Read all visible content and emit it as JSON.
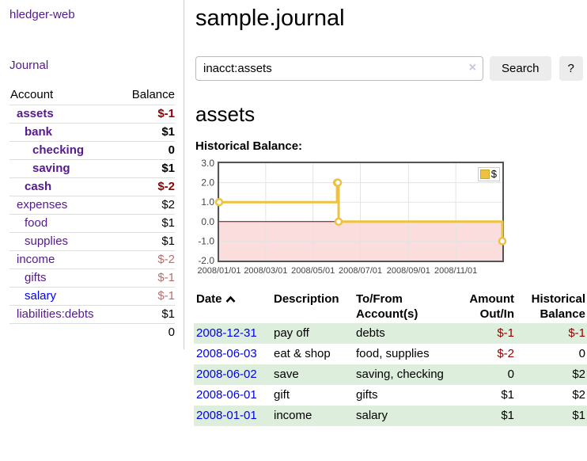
{
  "sidebar": {
    "brand": "hledger-web",
    "nav": {
      "journal_label": "Journal"
    },
    "accounts_table": {
      "headers": {
        "account": "Account",
        "balance": "Balance"
      },
      "rows": [
        {
          "name": "assets",
          "balance": "$-1",
          "depth": 1,
          "bold": true
        },
        {
          "name": "bank",
          "balance": "$1",
          "depth": 2,
          "bold": true
        },
        {
          "name": "checking",
          "balance": "0",
          "depth": 3,
          "bold": true
        },
        {
          "name": "saving",
          "balance": "$1",
          "depth": 3,
          "bold": true
        },
        {
          "name": "cash",
          "balance": "$-2",
          "depth": 2,
          "bold": true
        },
        {
          "name": "expenses",
          "balance": "$2",
          "depth": 1,
          "bold": false
        },
        {
          "name": "food",
          "balance": "$1",
          "depth": 2,
          "bold": false
        },
        {
          "name": "supplies",
          "balance": "$1",
          "depth": 2,
          "bold": false
        },
        {
          "name": "income",
          "balance": "$-2",
          "depth": 1,
          "bold": false
        },
        {
          "name": "gifts",
          "balance": "$-1",
          "depth": 2,
          "bold": false
        },
        {
          "name": "salary",
          "balance": "$-1",
          "depth": 2,
          "bold": false,
          "visited": false
        },
        {
          "name": "liabilities:debts",
          "balance": "$1",
          "depth": 1,
          "bold": false
        }
      ],
      "total": "0"
    }
  },
  "main": {
    "title": "sample.journal",
    "search": {
      "value": "inacct:assets",
      "clear_icon": "×",
      "button_label": "Search",
      "help_label": "?"
    },
    "account_heading": "assets",
    "chart_label": "Historical Balance:"
  },
  "chart_data": {
    "type": "line",
    "title": "Historical Balance:",
    "series": [
      {
        "name": "$",
        "color": "#edc240",
        "step": true,
        "points": [
          [
            "2008-01-01",
            1
          ],
          [
            "2008-06-01",
            2
          ],
          [
            "2008-06-02",
            2
          ],
          [
            "2008-06-03",
            0
          ],
          [
            "2008-12-31",
            -1
          ]
        ]
      }
    ],
    "x_range": [
      "2008-01-01",
      "2008-12-31"
    ],
    "ylim": [
      -2,
      3
    ],
    "y_ticks": [
      {
        "value": 3,
        "label": "3.0"
      },
      {
        "value": 2,
        "label": "2.0"
      },
      {
        "value": 1,
        "label": "1.0"
      },
      {
        "value": 0,
        "label": "0.0"
      },
      {
        "value": -1,
        "label": "-1.0"
      },
      {
        "value": -2,
        "label": "-2.0"
      }
    ],
    "x_ticks": [
      {
        "date": "2008-01-01",
        "label": "2008/01/01"
      },
      {
        "date": "2008-03-01",
        "label": "2008/03/01"
      },
      {
        "date": "2008-05-01",
        "label": "2008/05/01"
      },
      {
        "date": "2008-07-01",
        "label": "2008/07/01"
      },
      {
        "date": "2008-09-01",
        "label": "2008/09/01"
      },
      {
        "date": "2008-11-01",
        "label": "2008/11/01"
      }
    ],
    "legend_position": "top-right",
    "grid": true,
    "colors": {
      "negative_region": "#fbdddd",
      "zero_line": "#8b0000",
      "grid_line": "#e3e3e3",
      "border": "#545454",
      "tick_label": "#444444"
    }
  },
  "transactions": {
    "headers": {
      "date": "Date",
      "description": "Description",
      "accounts": "To/From Account(s)",
      "amount": "Amount Out/In",
      "balance": "Historical Balance"
    },
    "rows": [
      {
        "date": "2008-12-31",
        "description": "pay off",
        "accounts": "debts",
        "amount": "$-1",
        "balance": "$-1"
      },
      {
        "date": "2008-06-03",
        "description": "eat & shop",
        "accounts": "food, supplies",
        "amount": "$-2",
        "balance": "0"
      },
      {
        "date": "2008-06-02",
        "description": "save",
        "accounts": "saving, checking",
        "amount": "0",
        "balance": "$2"
      },
      {
        "date": "2008-06-01",
        "description": "gift",
        "accounts": "gifts",
        "amount": "$1",
        "balance": "$2"
      },
      {
        "date": "2008-01-01",
        "description": "income",
        "accounts": "salary",
        "amount": "$1",
        "balance": "$1"
      }
    ]
  }
}
